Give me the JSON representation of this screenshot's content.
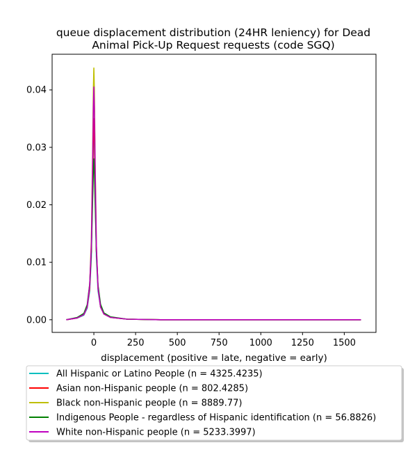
{
  "chart_data": {
    "type": "line",
    "title_lines": [
      "queue displacement distribution (24HR leniency) for Dead",
      "Animal Pick-Up Request  requests (code SGQ)"
    ],
    "xlabel": "displacement (positive = late, negative = early)",
    "ylabel": "",
    "xlim": [
      -250,
      1690
    ],
    "ylim": [
      -0.0022,
      0.0462
    ],
    "x_ticks": [
      0,
      250,
      500,
      750,
      1000,
      1250,
      1500
    ],
    "y_ticks": [
      0.0,
      0.01,
      0.02,
      0.03,
      0.04
    ],
    "y_tick_labels": [
      "0.00",
      "0.01",
      "0.02",
      "0.03",
      "0.04"
    ],
    "grid": false,
    "legend_position": "below plot",
    "series": [
      {
        "name": "All Hispanic or Latino People (n = 4325.4235)",
        "color": "#00bfbf",
        "x": [
          -165,
          -100,
          -60,
          -40,
          -25,
          -15,
          -8,
          -3,
          0,
          3,
          8,
          15,
          25,
          40,
          60,
          100,
          200,
          400,
          800,
          1200,
          1600
        ],
        "y": [
          0.0,
          0.0003,
          0.0008,
          0.002,
          0.005,
          0.011,
          0.022,
          0.031,
          0.034,
          0.031,
          0.022,
          0.011,
          0.005,
          0.0022,
          0.001,
          0.0004,
          0.0001,
          0.0,
          0.0,
          0.0,
          0.0
        ]
      },
      {
        "name": "Asian non-Hispanic people (n = 802.4285)",
        "color": "#ff0000",
        "x": [
          -165,
          -100,
          -60,
          -40,
          -25,
          -15,
          -8,
          -3,
          0,
          3,
          8,
          15,
          25,
          40,
          60,
          100,
          200,
          400,
          800,
          1200,
          1600
        ],
        "y": [
          0.0,
          0.0003,
          0.0009,
          0.0022,
          0.0055,
          0.012,
          0.023,
          0.032,
          0.035,
          0.032,
          0.023,
          0.012,
          0.0055,
          0.0023,
          0.001,
          0.0004,
          0.0001,
          0.0,
          0.0,
          0.0,
          0.0
        ]
      },
      {
        "name": "Black non-Hispanic people (n = 8889.77)",
        "color": "#bfbf00",
        "x": [
          -165,
          -100,
          -60,
          -40,
          -25,
          -15,
          -8,
          -3,
          0,
          3,
          8,
          15,
          25,
          40,
          60,
          100,
          200,
          400,
          800,
          1200,
          1600
        ],
        "y": [
          0.0,
          0.0003,
          0.0009,
          0.0022,
          0.006,
          0.014,
          0.028,
          0.04,
          0.0438,
          0.04,
          0.027,
          0.013,
          0.0055,
          0.0022,
          0.001,
          0.0004,
          0.0001,
          0.0,
          0.0,
          0.0,
          0.0
        ]
      },
      {
        "name": "Indigenous People - regardless of Hispanic identification (n = 56.8826)",
        "color": "#008000",
        "x": [
          -165,
          -100,
          -60,
          -40,
          -25,
          -15,
          -8,
          -3,
          0,
          3,
          8,
          15,
          25,
          40,
          60,
          100,
          200,
          400,
          800,
          1200,
          1600
        ],
        "y": [
          0.0,
          0.0004,
          0.0011,
          0.0026,
          0.0062,
          0.012,
          0.02,
          0.026,
          0.028,
          0.026,
          0.02,
          0.012,
          0.006,
          0.0027,
          0.0012,
          0.0005,
          0.0001,
          0.0,
          0.0,
          0.0,
          0.0
        ]
      },
      {
        "name": "White non-Hispanic people (n = 5233.3997)",
        "color": "#bf00bf",
        "x": [
          -165,
          -100,
          -60,
          -40,
          -25,
          -15,
          -8,
          -3,
          0,
          3,
          8,
          15,
          25,
          40,
          60,
          100,
          200,
          400,
          800,
          1200,
          1600
        ],
        "y": [
          0.0,
          0.0003,
          0.0009,
          0.0022,
          0.006,
          0.013,
          0.026,
          0.037,
          0.0405,
          0.037,
          0.026,
          0.013,
          0.0055,
          0.0022,
          0.001,
          0.0004,
          0.0001,
          0.0,
          0.0,
          0.0,
          0.0
        ]
      }
    ]
  }
}
